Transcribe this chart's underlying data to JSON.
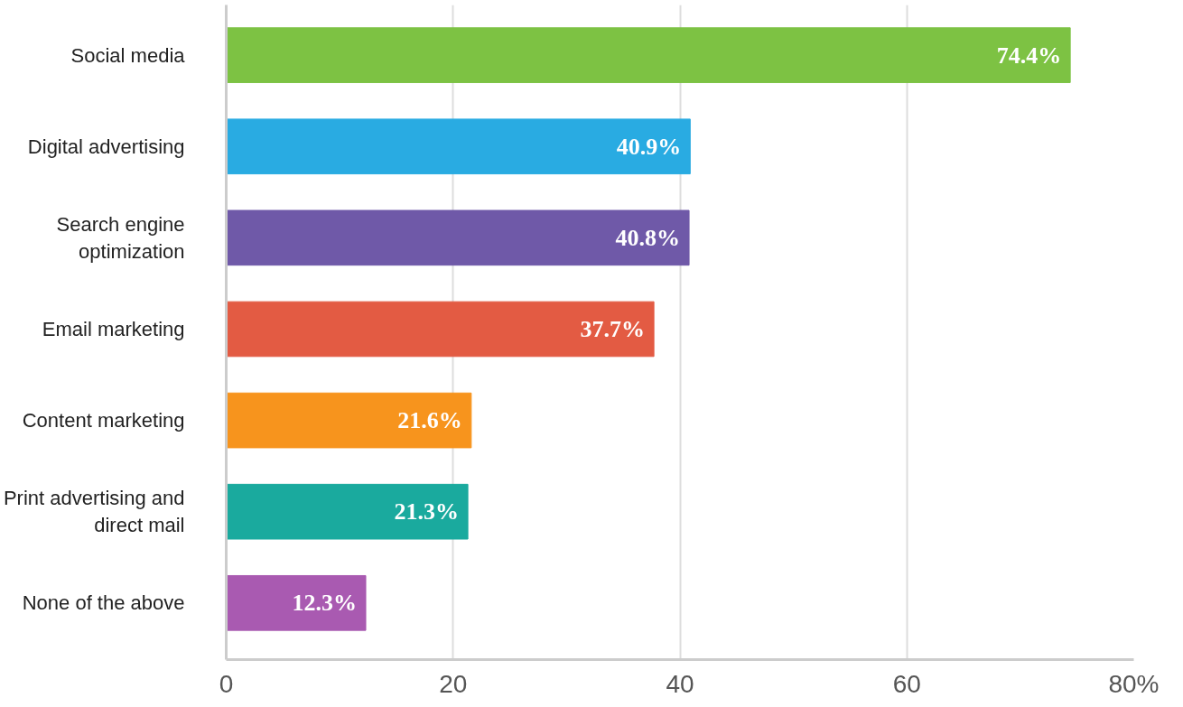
{
  "chart_data": {
    "type": "bar",
    "orientation": "horizontal",
    "categories": [
      "Social media",
      "Digital advertising",
      "Search engine optimization",
      "Email marketing",
      "Content marketing",
      "Print advertising and direct mail",
      "None of the above"
    ],
    "values": [
      74.4,
      40.9,
      40.8,
      37.7,
      21.6,
      21.3,
      12.3
    ],
    "colors": [
      "#7dc243",
      "#29abe2",
      "#6f59a8",
      "#e35b43",
      "#f7941d",
      "#1aaa9e",
      "#a95ab1"
    ],
    "value_labels": [
      "74.4%",
      "40.9%",
      "40.8%",
      "37.7%",
      "21.6%",
      "21.3%",
      "12.3%"
    ],
    "xlim": [
      0,
      80
    ],
    "xticks": [
      0,
      20,
      40,
      60,
      {
        "value": 80,
        "label": "80%"
      }
    ],
    "grid": "x"
  }
}
